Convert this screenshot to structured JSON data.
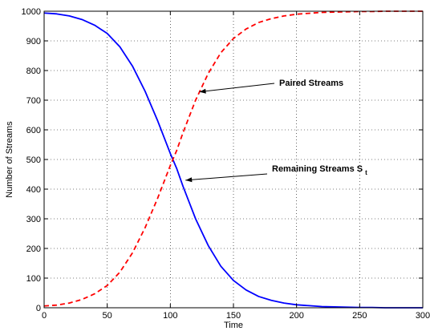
{
  "chart_data": {
    "type": "line",
    "title": "",
    "xlabel": "Time",
    "ylabel": "Number of Streams",
    "xlim": [
      0,
      300
    ],
    "ylim": [
      0,
      1000
    ],
    "xticks": [
      0,
      50,
      100,
      150,
      200,
      250,
      300
    ],
    "yticks": [
      0,
      100,
      200,
      300,
      400,
      500,
      600,
      700,
      800,
      900,
      1000
    ],
    "grid": true,
    "grid_style": "dotted",
    "x": [
      0,
      10,
      20,
      30,
      40,
      50,
      60,
      70,
      80,
      90,
      100,
      105,
      110,
      120,
      130,
      140,
      150,
      160,
      170,
      180,
      190,
      200,
      210,
      220,
      230,
      240,
      250,
      260,
      270,
      280,
      290,
      300
    ],
    "series": [
      {
        "color": "#0000ff",
        "style": "solid",
        "values": [
          994,
          991,
          984,
          972,
          953,
          925,
          880,
          815,
          730,
          630,
          520,
          470,
          410,
          300,
          210,
          140,
          92,
          60,
          38,
          25,
          16,
          10,
          7,
          4,
          3,
          2,
          1,
          1,
          0,
          0,
          0,
          0
        ]
      },
      {
        "color": "#ff0000",
        "style": "dashed",
        "values": [
          6,
          9,
          16,
          28,
          47,
          75,
          120,
          185,
          270,
          370,
          480,
          530,
          590,
          700,
          790,
          860,
          908,
          940,
          962,
          975,
          984,
          990,
          993,
          996,
          997,
          998,
          999,
          999,
          1000,
          1000,
          1000,
          1000
        ]
      }
    ],
    "annotations": [
      {
        "text": "Paired Streams",
        "subscript": "",
        "arrow_to": [
          123,
          728
        ]
      },
      {
        "text": "Remaining Streams S",
        "subscript": "t",
        "arrow_to": [
          112,
          430
        ]
      }
    ]
  }
}
